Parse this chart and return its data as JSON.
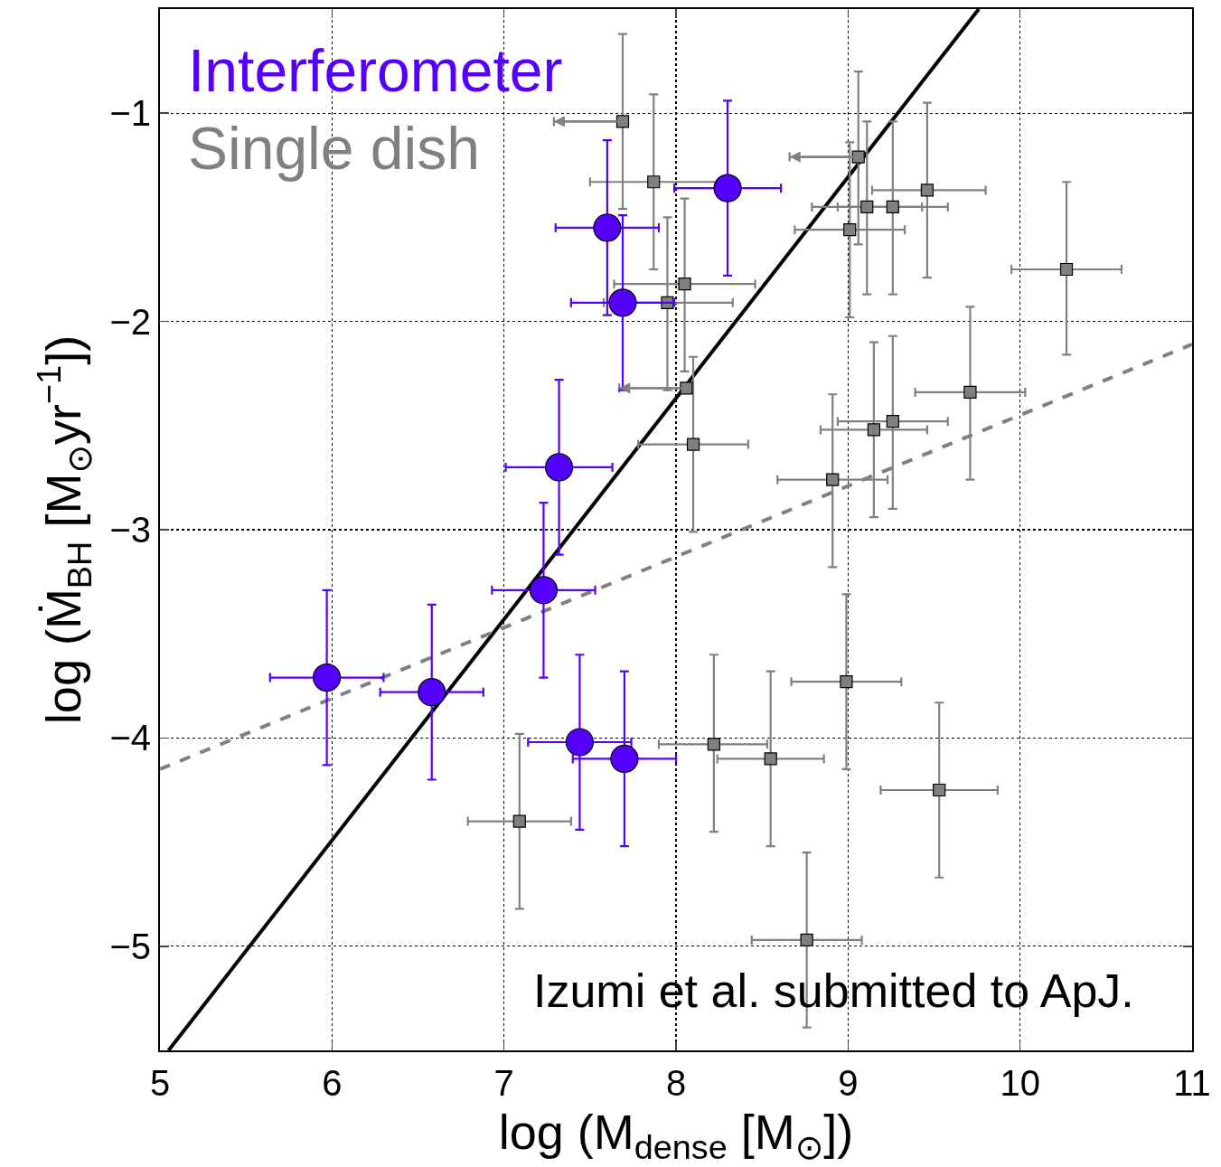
{
  "chart_data": {
    "type": "scatter",
    "xlabel": "log (M$_{dense}$ [M$_{⊙}$])",
    "ylabel": "log (Ṁ$_{BH}$ [M$_{⊙}$yr$^{−1}$])",
    "xlim": [
      5,
      11
    ],
    "ylim": [
      -5.5,
      -0.5
    ],
    "xticks": [
      5,
      6,
      7,
      8,
      9,
      10,
      11
    ],
    "yticks": [
      {
        "value": -5,
        "label": "−5"
      },
      {
        "value": -4,
        "label": "−4"
      },
      {
        "value": -3,
        "label": "−3"
      },
      {
        "value": -2,
        "label": "−2"
      },
      {
        "value": -1,
        "label": "−1"
      }
    ],
    "grid": true,
    "legend": "top left",
    "annotations": [
      "Izumi et al. submitted to ApJ."
    ],
    "series": [
      {
        "type": "line",
        "color": "#000000",
        "line_style": "solid",
        "marker": "none",
        "x": [
          5.05,
          9.76
        ],
        "values": [
          -5.5,
          -0.5
        ]
      },
      {
        "type": "line",
        "color": "#808080",
        "line_style": "dashed",
        "marker": "none",
        "x": [
          5,
          11
        ],
        "values": [
          -4.15,
          -2.11
        ]
      },
      {
        "name": "Single dish",
        "color": "#808080",
        "marker": "square",
        "x": [
          7.87,
          7.95,
          8.06,
          8.05,
          7.69,
          9.06,
          9.01,
          9.11,
          9.26,
          9.46,
          10.27,
          9.71,
          9.15,
          9.26,
          8.91,
          8.99,
          8.22,
          8.55,
          9.53,
          7.09,
          8.76,
          8.1
        ],
        "values": [
          -1.33,
          -1.91,
          -2.32,
          -1.82,
          -1.04,
          -1.21,
          -1.56,
          -1.45,
          -1.45,
          -1.37,
          -1.75,
          -2.34,
          -2.52,
          -2.48,
          -2.76,
          -3.73,
          -4.03,
          -4.1,
          -4.25,
          -4.4,
          -4.97,
          -2.59
        ],
        "xerrors": [
          [
            7.5,
            8.25
          ],
          [
            7.58,
            8.33
          ],
          [
            7.67,
            8.06
          ],
          [
            7.64,
            8.46
          ],
          [
            7.29,
            7.69
          ],
          [
            8.66,
            9.06
          ],
          [
            8.69,
            9.33
          ],
          [
            8.79,
            9.43
          ],
          [
            8.94,
            9.58
          ],
          [
            9.14,
            9.8
          ],
          [
            9.95,
            10.59
          ],
          [
            9.39,
            10.03
          ],
          [
            8.84,
            9.46
          ],
          [
            8.94,
            9.58
          ],
          [
            8.59,
            9.23
          ],
          [
            8.67,
            9.31
          ],
          [
            7.9,
            8.53
          ],
          [
            8.24,
            8.86
          ],
          [
            9.19,
            9.87
          ],
          [
            6.79,
            7.39
          ],
          [
            8.44,
            9.08
          ],
          [
            7.78,
            8.42
          ]
        ],
        "errors": [
          [
            -1.75,
            -0.91
          ],
          [
            -2.33,
            -1.5
          ],
          null,
          [
            -2.24,
            -1.41
          ],
          [
            -1.46,
            -0.62
          ],
          [
            -1.63,
            -0.8
          ],
          [
            -1.98,
            -1.14
          ],
          [
            -1.87,
            -1.04
          ],
          [
            -1.87,
            -1.04
          ],
          [
            -1.79,
            -0.95
          ],
          [
            -2.16,
            -1.33
          ],
          [
            -2.76,
            -1.93
          ],
          [
            -2.94,
            -2.1
          ],
          [
            -2.9,
            -2.07
          ],
          [
            -3.18,
            -2.35
          ],
          [
            -4.15,
            -3.31
          ],
          [
            -4.45,
            -3.6
          ],
          [
            -4.52,
            -3.68
          ],
          [
            -4.67,
            -3.83
          ],
          [
            -4.82,
            -3.98
          ],
          [
            -5.39,
            -4.55
          ],
          [
            -3.01,
            -2.17
          ]
        ]
      },
      {
        "name": "Interferometer",
        "color": "#5500ff",
        "marker": "circle",
        "x": [
          5.97,
          6.58,
          7.23,
          7.32,
          7.44,
          7.7,
          7.6,
          7.69,
          8.3
        ],
        "values": [
          -3.71,
          -3.78,
          -3.29,
          -2.7,
          -4.02,
          -4.1,
          -1.55,
          -1.91,
          -1.36
        ],
        "xerrors": [
          0.33,
          0.3,
          0.3,
          0.31,
          0.3,
          0.3,
          0.3,
          0.3,
          0.31
        ],
        "errors": [
          0.42,
          0.42,
          0.42,
          0.42,
          0.42,
          0.42,
          0.42,
          0.42,
          0.42
        ]
      }
    ]
  }
}
